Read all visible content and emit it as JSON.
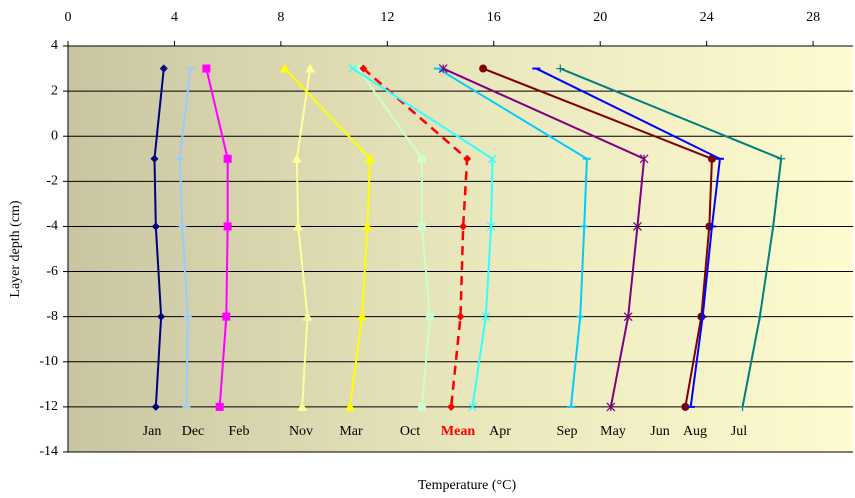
{
  "chart_data": {
    "type": "line",
    "x_label": "Temperature (°C)",
    "y_label": "Layer depth (cm)",
    "y": [
      3,
      -1,
      -4,
      -8,
      -12
    ],
    "xlim": [
      0,
      29.5
    ],
    "xticks": [
      0,
      4,
      8,
      12,
      16,
      20,
      24,
      28
    ],
    "ylim": [
      -14,
      4
    ],
    "yticks": [
      4,
      2,
      0,
      -2,
      -4,
      -6,
      -8,
      -10,
      -12,
      -14
    ],
    "grid": true,
    "series": [
      {
        "name": "Jan",
        "color": "#000080",
        "marker": "diamond",
        "values": [
          3.6,
          3.25,
          3.3,
          3.5,
          3.3
        ]
      },
      {
        "name": "Dec",
        "color": "#99ccff",
        "marker": "dash",
        "values": [
          4.6,
          4.2,
          4.3,
          4.5,
          4.45
        ]
      },
      {
        "name": "Feb",
        "color": "#ff00ff",
        "marker": "square",
        "values": [
          5.2,
          6.0,
          6.0,
          5.95,
          5.7
        ]
      },
      {
        "name": "Nov",
        "color": "#ffff99",
        "marker": "triangle",
        "values": [
          9.1,
          8.6,
          8.65,
          9.0,
          8.8
        ]
      },
      {
        "name": "Mar",
        "color": "#ffff00",
        "marker": "triangle",
        "values": [
          8.15,
          11.35,
          11.25,
          11.05,
          10.6
        ]
      },
      {
        "name": "Oct",
        "color": "#ccffcc",
        "marker": "square",
        "values": [
          10.9,
          13.3,
          13.3,
          13.6,
          13.3
        ]
      },
      {
        "name": "Mean",
        "color": "#ff0000",
        "marker": "diamond",
        "dashed": true,
        "values": [
          11.1,
          15.0,
          14.85,
          14.75,
          14.4
        ]
      },
      {
        "name": "Apr",
        "color": "#33ffff",
        "marker": "cross",
        "values": [
          10.7,
          15.95,
          15.9,
          15.7,
          15.2
        ]
      },
      {
        "name": "Sep",
        "color": "#00ccff",
        "marker": "dash",
        "values": [
          13.9,
          19.5,
          19.4,
          19.25,
          18.9
        ]
      },
      {
        "name": "May",
        "color": "#800080",
        "marker": "star",
        "values": [
          14.1,
          21.65,
          21.4,
          21.05,
          20.4
        ]
      },
      {
        "name": "Jun",
        "color": "#800000",
        "marker": "circle",
        "values": [
          15.6,
          24.2,
          24.1,
          23.8,
          23.2
        ]
      },
      {
        "name": "Aug",
        "color": "#0000ff",
        "marker": "dash",
        "values": [
          17.6,
          24.5,
          24.2,
          23.85,
          23.4
        ]
      },
      {
        "name": "Jul",
        "color": "#008080",
        "marker": "plus",
        "values": [
          18.5,
          26.8,
          26.5,
          26.0,
          25.35
        ]
      }
    ]
  }
}
